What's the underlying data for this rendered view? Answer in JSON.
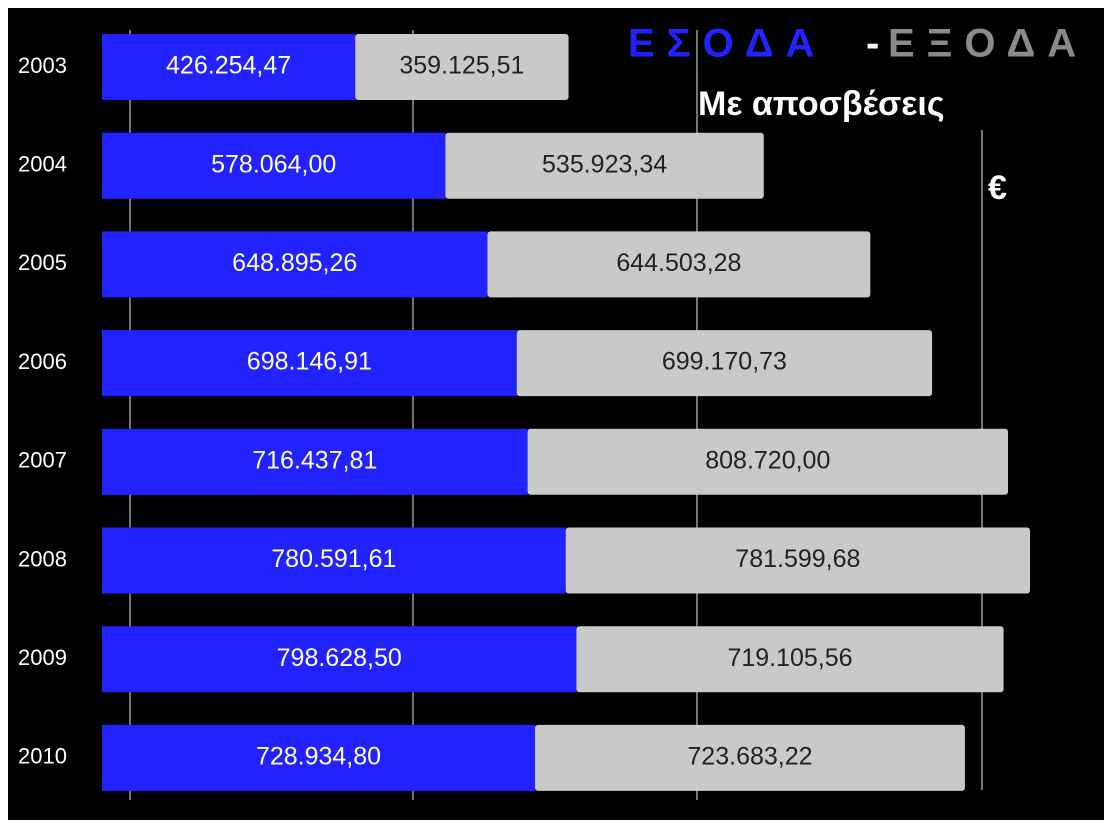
{
  "chart_data": {
    "type": "bar",
    "orientation": "horizontal",
    "stacked": true,
    "separator": "-",
    "subtitle": "Με αποσβέσεις",
    "unit": "€",
    "categories": [
      "2003",
      "2004",
      "2005",
      "2006",
      "2007",
      "2008",
      "2009",
      "2010"
    ],
    "series": [
      {
        "name": "ΕΣΟΔΑ",
        "color": "#2222ff",
        "values": [
          426254.47,
          578064.0,
          648895.26,
          698146.91,
          716437.81,
          780591.61,
          798628.5,
          728934.8
        ],
        "value_labels": [
          "426.254,47",
          "578.064,00",
          "648.895,26",
          "698.146,91",
          "716.437,81",
          "780.591,61",
          "798.628,50",
          "728.934,80"
        ]
      },
      {
        "name": "ΕΞΟΔΑ",
        "color": "#c9c9c9",
        "values": [
          359125.51,
          535923.34,
          644503.28,
          699170.73,
          808720.0,
          781599.68,
          719105.56,
          723683.22
        ],
        "value_labels": [
          "359.125,51",
          "535.923,34",
          "644.503,28",
          "699.170,73",
          "808.720,00",
          "781.599,68",
          "719.105,56",
          "723.683,22"
        ]
      }
    ],
    "xlim": [
      0,
      1680000
    ]
  }
}
